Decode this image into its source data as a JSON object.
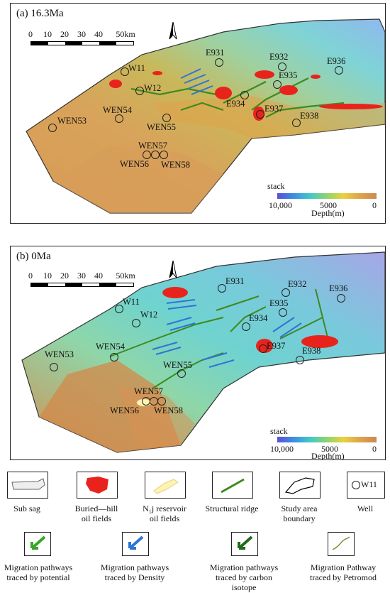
{
  "panel_a": {
    "label": "(a) 16.3Ma",
    "scale_ticks": [
      "0",
      "10",
      "20",
      "30",
      "40",
      "50km"
    ],
    "colorbar_title": "stack",
    "colorbar_ticks": [
      "10,000",
      "5000",
      "0"
    ],
    "depth_label": "Depth(m)",
    "wells": [
      {
        "id": "E931"
      },
      {
        "id": "E932"
      },
      {
        "id": "E935"
      },
      {
        "id": "E936"
      },
      {
        "id": "E934"
      },
      {
        "id": "E937"
      },
      {
        "id": "E938"
      },
      {
        "id": "W11"
      },
      {
        "id": "W12"
      },
      {
        "id": "WEN54"
      },
      {
        "id": "WEN53"
      },
      {
        "id": "WEN55"
      },
      {
        "id": "WEN57"
      },
      {
        "id": "WEN56"
      },
      {
        "id": "WEN58"
      }
    ]
  },
  "panel_b": {
    "label": "(b) 0Ma",
    "scale_ticks": [
      "0",
      "10",
      "20",
      "30",
      "40",
      "50km"
    ],
    "colorbar_title": "stack",
    "colorbar_ticks": [
      "10,000",
      "5000",
      "0"
    ],
    "depth_label": "Depth(m)",
    "wells": [
      {
        "id": "E931"
      },
      {
        "id": "E932"
      },
      {
        "id": "E935"
      },
      {
        "id": "E936"
      },
      {
        "id": "E934"
      },
      {
        "id": "E937"
      },
      {
        "id": "E938"
      },
      {
        "id": "W11"
      },
      {
        "id": "W12"
      },
      {
        "id": "WEN54"
      },
      {
        "id": "WEN53"
      },
      {
        "id": "WEN55"
      },
      {
        "id": "WEN57"
      },
      {
        "id": "WEN56"
      },
      {
        "id": "WEN58"
      }
    ]
  },
  "legend": {
    "row1": [
      {
        "label": "Sub sag"
      },
      {
        "label": "Buried—hill\noil fields"
      },
      {
        "label": "N₁j reservoir\noil fields"
      },
      {
        "label": "Structural ridge"
      },
      {
        "label": "Study area\nboundary"
      },
      {
        "label": "Well",
        "sample": "W11"
      }
    ],
    "row2": [
      {
        "label": "Migration pathways\ntraced by potential"
      },
      {
        "label": "Migration pathways\ntraced by Density"
      },
      {
        "label": "Migration pathways\ntraced by carbon\nisotope"
      },
      {
        "label": "Migration Pathway\ntraced  by  Petromod"
      }
    ]
  },
  "colors": {
    "deep": "#5b4fd6",
    "mid": "#42c9c9",
    "shallow": "#d08a4e",
    "oil_field": "#e8231c",
    "reservoir": "#fff3b0",
    "ridge": "#3d8a1f",
    "density": "#2e74d6",
    "isotope": "#1f6b1a"
  }
}
